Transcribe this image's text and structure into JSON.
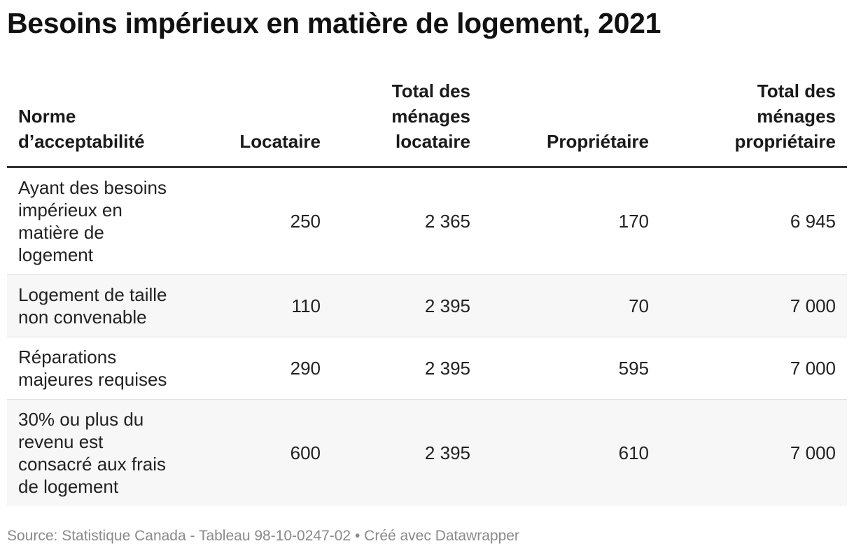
{
  "title": "Besoins impérieux en matière de logement, 2021",
  "chart_data": {
    "type": "table",
    "title": "Besoins impérieux en matière de logement, 2021",
    "columns": [
      "Norme d’acceptabilité",
      "Locataire",
      "Total des ménages locataire",
      "Propriétaire",
      "Total des ménages propriétaire"
    ],
    "rows": [
      [
        "Ayant des besoins impérieux en matière de logement",
        "250",
        "2 365",
        "170",
        "6 945"
      ],
      [
        "Logement de taille non convenable",
        "110",
        "2 395",
        "70",
        "7 000"
      ],
      [
        "Réparations majeures requises",
        "290",
        "2 395",
        "595",
        "7 000"
      ],
      [
        "30% ou plus du revenu est consacré aux frais de logement",
        "600",
        "2 395",
        "610",
        "7 000"
      ]
    ]
  },
  "footer": {
    "source": "Source: Statistique Canada - Tableau 98-10-0247-02",
    "separator": " • ",
    "credit": "Créé avec Datawrapper"
  }
}
